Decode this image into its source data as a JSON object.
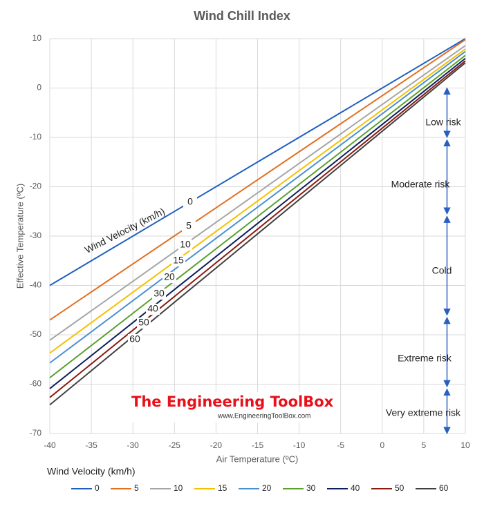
{
  "chart_data": {
    "type": "line",
    "title": "Wind Chill Index",
    "x_label": "Air Temperature (ºC)",
    "y_label": "Effective Temperature (ºC)",
    "legend_title": "Wind Velocity (km/h)",
    "legend": "bottom",
    "grid": true,
    "x": [
      -40,
      10
    ],
    "series": [
      {
        "name": "0",
        "color": "#1f5fbf",
        "values": [
          -40,
          10
        ]
      },
      {
        "name": "5",
        "color": "#e07020",
        "values": [
          -47,
          9.8
        ]
      },
      {
        "name": "10",
        "color": "#a5a5a5",
        "values": [
          -51.1,
          8.6
        ]
      },
      {
        "name": "15",
        "color": "#f5c000",
        "values": [
          -53.7,
          7.9
        ]
      },
      {
        "name": "20",
        "color": "#4a90d0",
        "values": [
          -55.7,
          7.4
        ]
      },
      {
        "name": "30",
        "color": "#5aa02c",
        "values": [
          -58.7,
          6.6
        ]
      },
      {
        "name": "40",
        "color": "#0c1f5c",
        "values": [
          -60.9,
          6
        ]
      },
      {
        "name": "50",
        "color": "#8b1a10",
        "values": [
          -62.7,
          5.5
        ]
      },
      {
        "name": "60",
        "color": "#404040",
        "values": [
          -64.2,
          5.1
        ]
      }
    ],
    "xlim": [
      -40,
      10
    ],
    "xticks": [
      -40,
      -35,
      -30,
      -25,
      -20,
      -15,
      -10,
      -5,
      0,
      5,
      10
    ],
    "ylim": [
      -70,
      10
    ],
    "yticks": [
      -70,
      -60,
      -50,
      -40,
      -30,
      -20,
      -10,
      0,
      10
    ],
    "risk_zones": [
      {
        "label": "Low risk",
        "from": 0,
        "to": -10
      },
      {
        "label": "Moderate risk",
        "from": -10.5,
        "to": -25.5
      },
      {
        "label": "Cold",
        "from": -26,
        "to": -46
      },
      {
        "label": "Extreme  risk",
        "from": -46.5,
        "to": -60.5
      },
      {
        "label": "Very extreme risk",
        "from": -61,
        "to": -70
      }
    ],
    "watermark": {
      "title": "The Engineering ToolBox",
      "url": "www.EngineeringToolBox.com"
    }
  }
}
